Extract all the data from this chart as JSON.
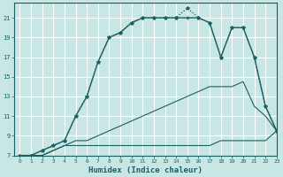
{
  "xlabel": "Humidex (Indice chaleur)",
  "background_color": "#c8e6e4",
  "grid_color": "#b0d4d2",
  "line_color": "#1a6060",
  "xlim": [
    -0.5,
    23
  ],
  "ylim": [
    7,
    22.5
  ],
  "xticks": [
    0,
    1,
    2,
    3,
    4,
    5,
    6,
    7,
    8,
    9,
    10,
    11,
    12,
    13,
    14,
    15,
    16,
    17,
    18,
    19,
    20,
    21,
    22,
    23
  ],
  "yticks": [
    7,
    9,
    11,
    13,
    15,
    17,
    19,
    21
  ],
  "curve_dotted_x": [
    0,
    1,
    2,
    3,
    4,
    5,
    6,
    7,
    8,
    9,
    10,
    11,
    12,
    13,
    14,
    15,
    16,
    17,
    18,
    19,
    20,
    21,
    22,
    23
  ],
  "curve_dotted_y": [
    7,
    7,
    7.5,
    8,
    8.5,
    11,
    13,
    16.5,
    19,
    19.5,
    20.5,
    21,
    21,
    21,
    21,
    22,
    21,
    20.5,
    17,
    20,
    20,
    17,
    12,
    9.5
  ],
  "curve_solid_x": [
    0,
    1,
    2,
    3,
    4,
    5,
    6,
    7,
    8,
    9,
    10,
    11,
    12,
    13,
    14,
    15,
    16,
    17,
    18,
    19,
    20,
    21,
    22,
    23
  ],
  "curve_solid_y": [
    7,
    7,
    7.5,
    8,
    8.5,
    11,
    13,
    16.5,
    19,
    19.5,
    20.5,
    21,
    21,
    21,
    21,
    21,
    21,
    20.5,
    17,
    20,
    20,
    17,
    12,
    9.5
  ],
  "curve_mid_x": [
    0,
    1,
    2,
    3,
    4,
    5,
    6,
    7,
    8,
    9,
    10,
    11,
    12,
    13,
    14,
    15,
    16,
    17,
    18,
    19,
    20,
    21,
    22,
    23
  ],
  "curve_mid_y": [
    7,
    7,
    7,
    7.5,
    8,
    8.5,
    8.5,
    9,
    9.5,
    10,
    10.5,
    11,
    11.5,
    12,
    12.5,
    13,
    13.5,
    14,
    14,
    14,
    14.5,
    12,
    11,
    9.5
  ],
  "curve_bot_x": [
    0,
    1,
    2,
    3,
    4,
    5,
    6,
    7,
    8,
    9,
    10,
    11,
    12,
    13,
    14,
    15,
    16,
    17,
    18,
    19,
    20,
    21,
    22,
    23
  ],
  "curve_bot_y": [
    7,
    7,
    7,
    7.5,
    8,
    8,
    8,
    8,
    8,
    8,
    8,
    8,
    8,
    8,
    8,
    8,
    8,
    8,
    8.5,
    8.5,
    8.5,
    8.5,
    8.5,
    9.5
  ]
}
